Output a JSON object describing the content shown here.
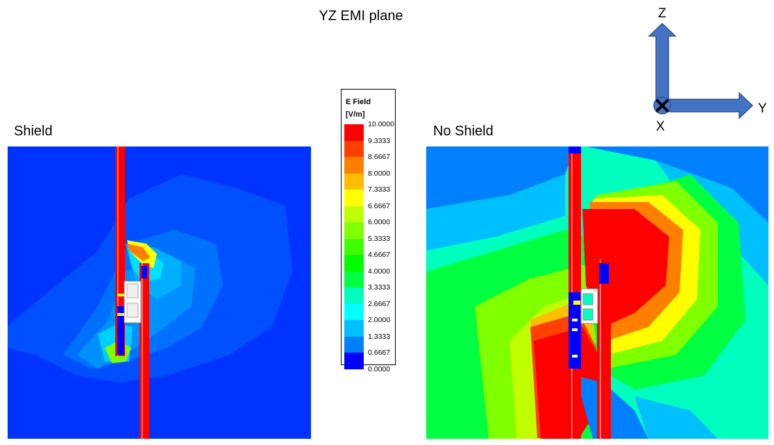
{
  "title": "YZ EMI plane",
  "panels": {
    "shield": {
      "label": "Shield"
    },
    "no_shield": {
      "label": "No Shield"
    }
  },
  "legend": {
    "title_line1": "E Field",
    "title_line2": "[V/m]",
    "ticks": [
      "10.0000",
      "9.3333",
      "8.6667",
      "8.0000",
      "7.3333",
      "6.6667",
      "6.0000",
      "5.3333",
      "4.6667",
      "4.0000",
      "3.3333",
      "2.6667",
      "2.0000",
      "1.3333",
      "0.6667",
      "0.0000"
    ],
    "colors": [
      "#ff0000",
      "#ff4000",
      "#ff8000",
      "#ffbf00",
      "#ffff00",
      "#bfff00",
      "#80ff00",
      "#40ff00",
      "#00ff00",
      "#00ff40",
      "#00ffbf",
      "#00ffff",
      "#00bfff",
      "#0080ff",
      "#0000ff"
    ]
  },
  "axes": {
    "z_label": "Z",
    "y_label": "Y",
    "x_label": "X",
    "arrow_color": "#4472c4"
  }
}
